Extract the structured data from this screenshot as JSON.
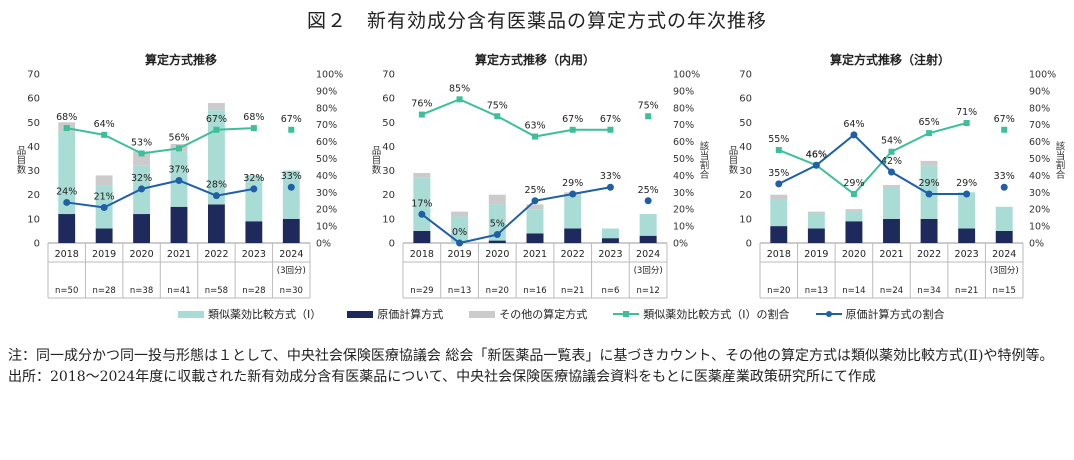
{
  "title": "図２　新有効成分含有医薬品の算定方式の年次推移",
  "chart_data": [
    {
      "type": "bar",
      "title": "算定方式推移",
      "ylabel": "品目数",
      "y2label": "",
      "ylim": [
        0,
        70
      ],
      "y_ticks": [
        0,
        10,
        20,
        30,
        40,
        50,
        60,
        70
      ],
      "y2lim": [
        0,
        100
      ],
      "y2_ticks": [
        "0%",
        "10%",
        "20%",
        "30%",
        "40%",
        "50%",
        "60%",
        "70%",
        "80%",
        "90%",
        "100%"
      ],
      "categories": [
        "2018",
        "2019",
        "2020",
        "2021",
        "2022",
        "2023",
        "2024"
      ],
      "category_notes": [
        "",
        "",
        "",
        "",
        "",
        "",
        "(3回分)"
      ],
      "n_labels": [
        "n=50",
        "n=28",
        "n=38",
        "n=41",
        "n=58",
        "n=28",
        "n=30"
      ],
      "stacked": [
        {
          "name": "原価計算方式",
          "values": [
            12,
            6,
            12,
            15,
            16,
            9,
            10
          ]
        },
        {
          "name": "類似薬効比較方式（Ⅰ）",
          "values": [
            34,
            18,
            20,
            23,
            39,
            19,
            20
          ]
        },
        {
          "name": "その他の算定方式",
          "values": [
            4,
            4,
            6,
            3,
            3,
            0,
            0
          ]
        }
      ],
      "lines": [
        {
          "name": "類似薬効比較方式（Ⅰ）の割合",
          "values": [
            68,
            64,
            53,
            56,
            67,
            68,
            67
          ],
          "labels": [
            "68%",
            "64%",
            "53%",
            "56%",
            "67%",
            "68%",
            "67%"
          ]
        },
        {
          "name": "原価計算方式の割合",
          "values": [
            24,
            21,
            32,
            37,
            28,
            32,
            33
          ],
          "labels": [
            "24%",
            "21%",
            "32%",
            "37%",
            "28%",
            "32%",
            "33%"
          ]
        }
      ]
    },
    {
      "type": "bar",
      "title": "算定方式推移（内用）",
      "ylabel": "品目数",
      "y2label": "該当割合",
      "ylim": [
        0,
        70
      ],
      "y_ticks": [
        0,
        10,
        20,
        30,
        40,
        50,
        60,
        70
      ],
      "y2lim": [
        0,
        100
      ],
      "y2_ticks": [
        "0%",
        "10%",
        "20%",
        "30%",
        "40%",
        "50%",
        "60%",
        "70%",
        "80%",
        "90%",
        "100%"
      ],
      "categories": [
        "2018",
        "2019",
        "2020",
        "2021",
        "2022",
        "2023",
        "2024"
      ],
      "category_notes": [
        "",
        "",
        "",
        "",
        "",
        "",
        "(3回分)"
      ],
      "n_labels": [
        "n=29",
        "n=13",
        "n=20",
        "n=16",
        "n=21",
        "n=6",
        "n=12"
      ],
      "stacked": [
        {
          "name": "原価計算方式",
          "values": [
            5,
            0,
            1,
            4,
            6,
            2,
            3
          ]
        },
        {
          "name": "類似薬効比較方式（Ⅰ）",
          "values": [
            22,
            11,
            15,
            10,
            14,
            4,
            9
          ]
        },
        {
          "name": "その他の算定方式",
          "values": [
            2,
            2,
            4,
            2,
            1,
            0,
            0
          ]
        }
      ],
      "lines": [
        {
          "name": "類似薬効比較方式（Ⅰ）の割合",
          "values": [
            76,
            85,
            75,
            63,
            67,
            67,
            75
          ],
          "labels": [
            "76%",
            "85%",
            "75%",
            "63%",
            "67%",
            "67%",
            "75%"
          ]
        },
        {
          "name": "原価計算方式の割合",
          "values": [
            17,
            0,
            5,
            25,
            29,
            33,
            25
          ],
          "labels": [
            "17%",
            "0%",
            "5%",
            "25%",
            "29%",
            "33%",
            "25%"
          ]
        }
      ]
    },
    {
      "type": "bar",
      "title": "算定方式推移（注射）",
      "ylabel": "品目数",
      "y2label": "該当割合",
      "ylim": [
        0,
        70
      ],
      "y_ticks": [
        0,
        10,
        20,
        30,
        40,
        50,
        60,
        70
      ],
      "y2lim": [
        0,
        100
      ],
      "y2_ticks": [
        "0%",
        "10%",
        "20%",
        "30%",
        "40%",
        "50%",
        "60%",
        "70%",
        "80%",
        "90%",
        "100%"
      ],
      "categories": [
        "2018",
        "2019",
        "2020",
        "2021",
        "2022",
        "2023",
        "2024"
      ],
      "category_notes": [
        "",
        "",
        "",
        "",
        "",
        "",
        "(3回分)"
      ],
      "n_labels": [
        "n=20",
        "n=13",
        "n=14",
        "n=24",
        "n=34",
        "n=21",
        "n=15"
      ],
      "stacked": [
        {
          "name": "原価計算方式",
          "values": [
            7,
            6,
            9,
            10,
            10,
            6,
            5
          ]
        },
        {
          "name": "類似薬効比較方式（Ⅰ）",
          "values": [
            11,
            6,
            4,
            13,
            22,
            15,
            10
          ]
        },
        {
          "name": "その他の算定方式",
          "values": [
            2,
            1,
            1,
            1,
            2,
            0,
            0
          ]
        }
      ],
      "lines": [
        {
          "name": "類似薬効比較方式（Ⅰ）の割合",
          "values": [
            55,
            46,
            29,
            54,
            65,
            71,
            67
          ],
          "labels": [
            "55%",
            "46%",
            "29%",
            "54%",
            "65%",
            "71%",
            "67%"
          ]
        },
        {
          "name": "原価計算方式の割合",
          "values": [
            35,
            46,
            64,
            42,
            29,
            29,
            33
          ],
          "labels": [
            "35%",
            "46%",
            "64%",
            "42%",
            "29%",
            "29%",
            "33%"
          ]
        }
      ]
    }
  ],
  "legend": [
    {
      "label": "類似薬効比較方式（Ⅰ）",
      "type": "box",
      "color": "#a8dcd4"
    },
    {
      "label": "原価計算方式",
      "type": "box",
      "color": "#1f2a5c"
    },
    {
      "label": "その他の算定方式",
      "type": "box",
      "color": "#cbcbcb"
    },
    {
      "label": "類似薬効比較方式（Ⅰ）の割合",
      "type": "line",
      "color": "#3cbf9a",
      "marker": "square"
    },
    {
      "label": "原価計算方式の割合",
      "type": "line",
      "color": "#1f5fa8",
      "marker": "circle"
    }
  ],
  "colors": {
    "bar_similar": "#a8dcd4",
    "bar_cost": "#1f2a5c",
    "bar_other": "#cbcbcb",
    "line_similar": "#3cbf9a",
    "line_cost": "#1f5fa8"
  },
  "notes": [
    {
      "label": "注：",
      "text": "同一成分かつ同一投与形態は１として、中央社会保険医療協議会 総会「新医薬品一覧表」に基づきカウント、その他の算定方式は類似薬効比較方式(Ⅱ)や特例等。"
    },
    {
      "label": "出所：",
      "text": "2018～2024年度に収載された新有効成分含有医薬品について、中央社会保険医療協議会資料をもとに医薬産業政策研究所にて作成"
    }
  ]
}
